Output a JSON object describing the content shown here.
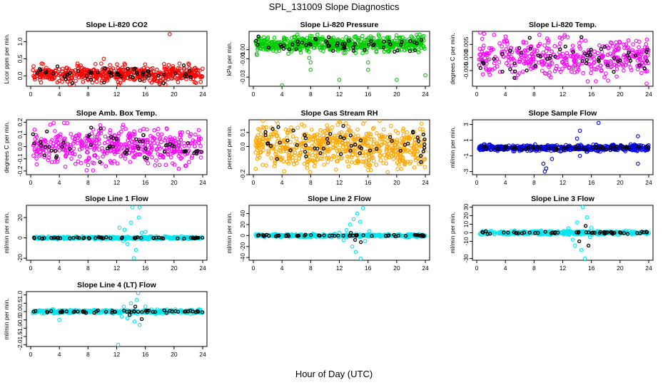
{
  "page": {
    "title": "SPL_131009  Slope Diagnostics",
    "xlabel": "Hour of Day (UTC)"
  },
  "chart_data": [
    {
      "id": "p1",
      "type": "scatter",
      "title": "Slope Li-820 CO2",
      "ylabel": "Licor ppm per min.",
      "xlim": [
        0,
        24
      ],
      "ylim": [
        -0.3,
        1.3
      ],
      "xticks": [
        0,
        4,
        8,
        12,
        16,
        20,
        24
      ],
      "yticks": [
        0.0,
        0.5,
        1.0
      ],
      "ytick_labels": [
        "0.0",
        "0.5",
        "1.0"
      ],
      "series": [
        {
          "color": "#ff0000",
          "center": 0.05,
          "spread": 0.12,
          "n": 520,
          "outliers": [
            [
              19.4,
              1.22
            ],
            [
              18.8,
              -0.25
            ],
            [
              12.5,
              -0.2
            ],
            [
              10.2,
              0.5
            ]
          ]
        },
        {
          "color": "#000000",
          "center": 0.05,
          "spread": 0.1,
          "n": 55,
          "outliers": []
        }
      ]
    },
    {
      "id": "p2",
      "type": "scatter",
      "title": "Slope Li-820 Pressure",
      "ylabel": "kPa per min.",
      "xlim": [
        0,
        24
      ],
      "ylim": [
        -0.04,
        0.02
      ],
      "xticks": [
        0,
        4,
        8,
        12,
        16,
        20,
        24
      ],
      "yticks": [
        0.0,
        -0.01,
        -0.03
      ],
      "ytick_labels": [
        "0.00",
        "-0.01",
        "-0.03"
      ],
      "series": [
        {
          "color": "#00cc00",
          "center": 0.006,
          "spread": 0.004,
          "n": 620,
          "outliers": [
            [
              0.5,
              -0.006
            ],
            [
              4.0,
              -0.039
            ],
            [
              8.0,
              -0.014
            ],
            [
              8.0,
              -0.022
            ],
            [
              12.0,
              -0.033
            ],
            [
              16.0,
              -0.014
            ],
            [
              16.0,
              -0.022
            ],
            [
              20.0,
              -0.033
            ],
            [
              24.0,
              -0.028
            ],
            [
              7.8,
              -0.009
            ]
          ]
        },
        {
          "color": "#000000",
          "center": 0.005,
          "spread": 0.004,
          "n": 55,
          "outliers": []
        }
      ]
    },
    {
      "id": "p3",
      "type": "scatter",
      "title": "Slope Li-820 Temp.",
      "ylabel": "degrees C per min.",
      "xlim": [
        0,
        24
      ],
      "ylim": [
        -0.011,
        0.01
      ],
      "xticks": [
        0,
        4,
        8,
        12,
        16,
        20,
        24
      ],
      "yticks": [
        0.005,
        0.0,
        -0.005
      ],
      "ytick_labels": [
        "0.005",
        "0.000",
        "-0.005"
      ],
      "series": [
        {
          "color": "#ff00ff",
          "center": 0.0,
          "spread": 0.0035,
          "n": 420,
          "outliers": [
            [
              0.5,
              0.0095
            ],
            [
              23.7,
              -0.01
            ]
          ]
        },
        {
          "color": "#000000",
          "center": 0.0,
          "spread": 0.003,
          "n": 55,
          "outliers": []
        }
      ]
    },
    {
      "id": "p4",
      "type": "scatter",
      "title": "Slope Amb. Box Temp.",
      "ylabel": "degrees C per min.",
      "xlim": [
        0,
        24
      ],
      "ylim": [
        -0.23,
        0.22
      ],
      "xticks": [
        0,
        4,
        8,
        12,
        16,
        20,
        24
      ],
      "yticks": [
        -0.2,
        -0.1,
        0.0,
        0.1,
        0.2
      ],
      "ytick_labels": [
        "-0.2",
        "-0.1",
        "0.0",
        "0.1",
        "0.2"
      ],
      "series": [
        {
          "color": "#ff00ff",
          "center": 0.0,
          "spread": 0.075,
          "n": 470,
          "outliers": []
        },
        {
          "color": "#000000",
          "center": 0.0,
          "spread": 0.06,
          "n": 55,
          "outliers": []
        }
      ]
    },
    {
      "id": "p5",
      "type": "scatter",
      "title": "Slope Gas Stream RH",
      "ylabel": "percent per min.",
      "xlim": [
        0,
        24
      ],
      "ylim": [
        -0.2,
        0.19
      ],
      "xticks": [
        0,
        4,
        8,
        12,
        16,
        20,
        24
      ],
      "yticks": [
        -0.2,
        0.0,
        0.1
      ],
      "ytick_labels": [
        "-0.2",
        "0.0",
        "0.1"
      ],
      "series": [
        {
          "color": "#ffa500",
          "center": 0.0,
          "spread": 0.07,
          "n": 640,
          "outliers": []
        },
        {
          "color": "#000000",
          "center": 0.02,
          "spread": 0.05,
          "n": 55,
          "outliers": []
        }
      ]
    },
    {
      "id": "p6",
      "type": "scatter",
      "title": "Slope Sample Flow",
      "ylabel": "ml/min per min.",
      "xlim": [
        0,
        24
      ],
      "ylim": [
        -3.4,
        3.6
      ],
      "xticks": [
        0,
        4,
        8,
        12,
        16,
        20,
        24
      ],
      "yticks": [
        -3,
        -1,
        1,
        3
      ],
      "ytick_labels": [
        "-3",
        "-1",
        "1",
        "3"
      ],
      "series": [
        {
          "color": "#0000dd",
          "center": 0.0,
          "spread": 0.18,
          "n": 560,
          "outliers": [
            [
              9.5,
              -3.0
            ],
            [
              9.7,
              -2.6
            ],
            [
              9.3,
              -2.0
            ],
            [
              14.4,
              2.2
            ],
            [
              14.0,
              1.2
            ],
            [
              10.5,
              -1.4
            ],
            [
              17.0,
              3.2
            ],
            [
              22.5,
              -2.0
            ],
            [
              22.5,
              1.5
            ],
            [
              14.4,
              -1.0
            ]
          ]
        },
        {
          "color": "#000000",
          "center": 0.0,
          "spread": 0.12,
          "n": 55,
          "outliers": []
        }
      ]
    },
    {
      "id": "p7",
      "type": "scatter",
      "title": "Slope Line 1 Flow",
      "ylabel": "ml/min per min.",
      "xlim": [
        0,
        24
      ],
      "ylim": [
        -22,
        32
      ],
      "xticks": [
        0,
        4,
        8,
        12,
        16,
        20,
        24
      ],
      "yticks": [
        -20,
        0,
        20
      ],
      "ytick_labels": [
        "-20",
        "0",
        "20"
      ],
      "series": [
        {
          "color": "#00e5ee",
          "center": 0.0,
          "spread": 0.6,
          "n": 380,
          "outliers": [
            [
              12.4,
              10
            ],
            [
              13.1,
              8
            ],
            [
              13.5,
              -6
            ],
            [
              14.0,
              15
            ],
            [
              14.2,
              30
            ],
            [
              14.7,
              -12
            ],
            [
              15.1,
              20
            ],
            [
              15.2,
              30
            ],
            [
              15.5,
              5
            ],
            [
              16.0,
              6
            ],
            [
              12.9,
              -3
            ],
            [
              14.4,
              -20
            ]
          ]
        },
        {
          "color": "#000000",
          "center": 0.0,
          "spread": 0.4,
          "n": 55,
          "outliers": []
        }
      ]
    },
    {
      "id": "p8",
      "type": "scatter",
      "title": "Slope Line 2 Flow",
      "ylabel": "ml/min per min.",
      "xlim": [
        0,
        24
      ],
      "ylim": [
        -45,
        55
      ],
      "xticks": [
        0,
        4,
        8,
        12,
        16,
        20,
        24
      ],
      "yticks": [
        -40,
        -20,
        0,
        20,
        40
      ],
      "ytick_labels": [
        "-40",
        "-20",
        "0",
        "20",
        "40"
      ],
      "series": [
        {
          "color": "#00e5ee",
          "center": 0.0,
          "spread": 1.2,
          "n": 380,
          "outliers": [
            [
              12.0,
              5
            ],
            [
              12.6,
              -8
            ],
            [
              13.0,
              10
            ],
            [
              13.5,
              20
            ],
            [
              13.8,
              -20
            ],
            [
              14.3,
              -30
            ],
            [
              14.5,
              40
            ],
            [
              14.9,
              25
            ],
            [
              15.0,
              -42
            ],
            [
              15.3,
              50
            ],
            [
              15.6,
              -10
            ],
            [
              16.2,
              8
            ],
            [
              11.4,
              3
            ],
            [
              14.0,
              30
            ]
          ]
        },
        {
          "color": "#000000",
          "center": 0.0,
          "spread": 0.8,
          "n": 55,
          "outliers": [
            [
              14.2,
              -8
            ],
            [
              15.0,
              -12
            ],
            [
              13.6,
              5
            ]
          ]
        }
      ]
    },
    {
      "id": "p9",
      "type": "scatter",
      "title": "Slope Line 3 Flow",
      "ylabel": "ml/min per min.",
      "xlim": [
        0,
        24
      ],
      "ylim": [
        -32,
        32
      ],
      "xticks": [
        0,
        4,
        8,
        12,
        16,
        20,
        24
      ],
      "yticks": [
        -30,
        -10,
        0,
        10,
        20,
        30
      ],
      "ytick_labels": [
        "-30",
        "-10",
        "0",
        "10",
        "20",
        "30"
      ],
      "series": [
        {
          "color": "#00e5ee",
          "center": 0.0,
          "spread": 1.0,
          "n": 380,
          "outliers": [
            [
              12.8,
              5
            ],
            [
              13.4,
              -8
            ],
            [
              14.0,
              12
            ],
            [
              14.6,
              -20
            ],
            [
              14.8,
              30
            ],
            [
              15.1,
              -30
            ],
            [
              15.4,
              18
            ],
            [
              16.0,
              6
            ],
            [
              13.7,
              -15
            ],
            [
              15.8,
              -5
            ]
          ]
        },
        {
          "color": "#000000",
          "center": 0.0,
          "spread": 0.8,
          "n": 55,
          "outliers": [
            [
              14.3,
              -10
            ],
            [
              15.6,
              -15
            ],
            [
              15.2,
              8
            ]
          ]
        }
      ]
    },
    {
      "id": "p10",
      "type": "scatter",
      "title": "Slope Line 4 (LT) Flow",
      "ylabel": "ml/min per min.",
      "xlim": [
        0,
        24
      ],
      "ylim": [
        -2.1,
        1.2
      ],
      "xticks": [
        0,
        4,
        8,
        12,
        16,
        20,
        24
      ],
      "yticks": [
        -2.0,
        -1.5,
        -1.0,
        -0.5,
        0.0,
        0.5,
        1.0
      ],
      "ytick_labels": [
        "-2.0",
        "-1.5",
        "-1.0",
        "-0.5",
        "0.0",
        "0.5",
        "1.0"
      ],
      "series": [
        {
          "color": "#00e5ee",
          "center": 0.0,
          "spread": 0.05,
          "n": 380,
          "outliers": [
            [
              12.2,
              -2.0
            ],
            [
              13.0,
              0.3
            ],
            [
              13.5,
              -0.4
            ],
            [
              14.0,
              0.5
            ],
            [
              14.5,
              -0.6
            ],
            [
              15.0,
              1.1
            ],
            [
              15.2,
              -0.8
            ],
            [
              16.0,
              0.3
            ],
            [
              4.0,
              -0.5
            ],
            [
              12.7,
              -0.3
            ],
            [
              14.8,
              0.7
            ]
          ]
        },
        {
          "color": "#000000",
          "center": 0.0,
          "spread": 0.04,
          "n": 55,
          "outliers": [
            [
              15.5,
              -0.45
            ],
            [
              14.6,
              0.3
            ],
            [
              13.8,
              -0.2
            ]
          ]
        }
      ]
    }
  ]
}
